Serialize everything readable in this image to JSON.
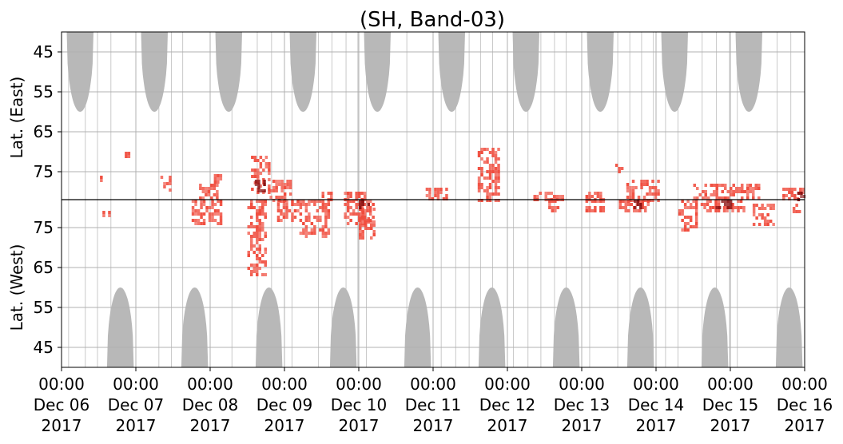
{
  "chart_data": {
    "type": "heatmap",
    "title": "(SH, Band-03)",
    "y_label_top": "Lat. (East)",
    "y_label_bottom": "Lat. (West)",
    "x_ticks": [
      {
        "value": "2017-12-06 00:00",
        "time": "00:00",
        "date": "Dec 06",
        "year": "2017"
      },
      {
        "value": "2017-12-07 00:00",
        "time": "00:00",
        "date": "Dec 07",
        "year": "2017"
      },
      {
        "value": "2017-12-08 00:00",
        "time": "00:00",
        "date": "Dec 08",
        "year": "2017"
      },
      {
        "value": "2017-12-09 00:00",
        "time": "00:00",
        "date": "Dec 09",
        "year": "2017"
      },
      {
        "value": "2017-12-10 00:00",
        "time": "00:00",
        "date": "Dec 10",
        "year": "2017"
      },
      {
        "value": "2017-12-11 00:00",
        "time": "00:00",
        "date": "Dec 11",
        "year": "2017"
      },
      {
        "value": "2017-12-12 00:00",
        "time": "00:00",
        "date": "Dec 12",
        "year": "2017"
      },
      {
        "value": "2017-12-13 00:00",
        "time": "00:00",
        "date": "Dec 13",
        "year": "2017"
      },
      {
        "value": "2017-12-14 00:00",
        "time": "00:00",
        "date": "Dec 14",
        "year": "2017"
      },
      {
        "value": "2017-12-15 00:00",
        "time": "00:00",
        "date": "Dec 15",
        "year": "2017"
      },
      {
        "value": "2017-12-16 00:00",
        "time": "00:00",
        "date": "Dec 16",
        "year": "2017"
      }
    ],
    "y_ticks_east": [
      "45",
      "55",
      "65",
      "75"
    ],
    "y_ticks_west": [
      "75",
      "65",
      "55",
      "45"
    ],
    "east_lat_values": [
      45,
      55,
      65,
      75
    ],
    "west_lat_values": [
      75,
      65,
      55,
      45
    ],
    "lat_range": [
      40,
      82
    ],
    "x_range": [
      "2017-12-06 00:00",
      "2017-12-16 00:00"
    ],
    "grid": true,
    "colors": {
      "echo": "#f04b3c",
      "echo_dark": "#8a1010",
      "daylight": "#b8b8b8",
      "grid": "#b0b0b0"
    },
    "east_daylight_lobes": [
      {
        "center": "2017-12-06 06:00",
        "lowest_lat": 60
      },
      {
        "center": "2017-12-07 06:00",
        "lowest_lat": 60
      },
      {
        "center": "2017-12-08 06:00",
        "lowest_lat": 60
      },
      {
        "center": "2017-12-09 06:00",
        "lowest_lat": 60
      },
      {
        "center": "2017-12-10 06:00",
        "lowest_lat": 60
      },
      {
        "center": "2017-12-11 06:00",
        "lowest_lat": 60
      },
      {
        "center": "2017-12-12 06:00",
        "lowest_lat": 60
      },
      {
        "center": "2017-12-13 06:00",
        "lowest_lat": 60
      },
      {
        "center": "2017-12-14 06:00",
        "lowest_lat": 60
      },
      {
        "center": "2017-12-15 06:00",
        "lowest_lat": 60
      }
    ],
    "west_daylight_lobes": [
      {
        "center": "2017-12-06 19:00",
        "lowest_lat": 60
      },
      {
        "center": "2017-12-07 19:00",
        "lowest_lat": 60
      },
      {
        "center": "2017-12-08 19:00",
        "lowest_lat": 60
      },
      {
        "center": "2017-12-09 19:00",
        "lowest_lat": 60
      },
      {
        "center": "2017-12-10 19:00",
        "lowest_lat": 60
      },
      {
        "center": "2017-12-11 19:00",
        "lowest_lat": 60
      },
      {
        "center": "2017-12-12 19:00",
        "lowest_lat": 60
      },
      {
        "center": "2017-12-13 19:00",
        "lowest_lat": 60
      },
      {
        "center": "2017-12-14 19:00",
        "lowest_lat": 60
      },
      {
        "center": "2017-12-15 19:00",
        "lowest_lat": 60
      }
    ],
    "echo_clusters": [
      {
        "side": "east",
        "t_start": 0.48,
        "t_end": 0.55,
        "lat_min": 76,
        "lat_max": 77
      },
      {
        "side": "east",
        "t_start": 0.85,
        "t_end": 0.9,
        "lat_min": 70,
        "lat_max": 71
      },
      {
        "side": "east",
        "t_start": 1.33,
        "t_end": 1.45,
        "lat_min": 76,
        "lat_max": 80
      },
      {
        "side": "east",
        "t_start": 1.85,
        "t_end": 2.1,
        "lat_min": 78,
        "lat_max": 82
      },
      {
        "side": "east",
        "t_start": 2.05,
        "t_end": 2.13,
        "lat_min": 74,
        "lat_max": 78
      },
      {
        "side": "east",
        "t_start": 2.55,
        "t_end": 2.8,
        "lat_min": 71,
        "lat_max": 80
      },
      {
        "side": "east",
        "t_start": 2.8,
        "t_end": 3.1,
        "lat_min": 77,
        "lat_max": 82
      },
      {
        "side": "east",
        "t_start": 3.5,
        "t_end": 3.65,
        "lat_min": 80,
        "lat_max": 82
      },
      {
        "side": "east",
        "t_start": 3.8,
        "t_end": 4.1,
        "lat_min": 80,
        "lat_max": 82
      },
      {
        "side": "east",
        "t_start": 4.9,
        "t_end": 5.2,
        "lat_min": 79,
        "lat_max": 82
      },
      {
        "side": "east",
        "t_start": 5.6,
        "t_end": 5.9,
        "lat_min": 69,
        "lat_max": 82
      },
      {
        "side": "east",
        "t_start": 6.35,
        "t_end": 6.75,
        "lat_min": 80,
        "lat_max": 82
      },
      {
        "side": "east",
        "t_start": 7.05,
        "t_end": 7.3,
        "lat_min": 80,
        "lat_max": 82
      },
      {
        "side": "east",
        "t_start": 7.45,
        "t_end": 7.55,
        "lat_min": 73,
        "lat_max": 75
      },
      {
        "side": "east",
        "t_start": 7.6,
        "t_end": 8.05,
        "lat_min": 77,
        "lat_max": 82
      },
      {
        "side": "east",
        "t_start": 8.5,
        "t_end": 9.4,
        "lat_min": 78,
        "lat_max": 82
      },
      {
        "side": "east",
        "t_start": 9.7,
        "t_end": 10.0,
        "lat_min": 79,
        "lat_max": 82
      },
      {
        "side": "west",
        "t_start": 0.55,
        "t_end": 0.65,
        "lat_min": 78,
        "lat_max": 80
      },
      {
        "side": "west",
        "t_start": 1.75,
        "t_end": 2.15,
        "lat_min": 76,
        "lat_max": 82
      },
      {
        "side": "west",
        "t_start": 2.5,
        "t_end": 2.75,
        "lat_min": 63,
        "lat_max": 82
      },
      {
        "side": "west",
        "t_start": 2.9,
        "t_end": 3.2,
        "lat_min": 77,
        "lat_max": 82
      },
      {
        "side": "west",
        "t_start": 3.2,
        "t_end": 3.6,
        "lat_min": 73,
        "lat_max": 82
      },
      {
        "side": "west",
        "t_start": 3.8,
        "t_end": 4.2,
        "lat_min": 76,
        "lat_max": 82
      },
      {
        "side": "west",
        "t_start": 4.0,
        "t_end": 4.2,
        "lat_min": 72,
        "lat_max": 80
      },
      {
        "side": "west",
        "t_start": 6.55,
        "t_end": 6.7,
        "lat_min": 79,
        "lat_max": 82
      },
      {
        "side": "west",
        "t_start": 7.05,
        "t_end": 7.3,
        "lat_min": 79,
        "lat_max": 82
      },
      {
        "side": "west",
        "t_start": 7.5,
        "t_end": 7.9,
        "lat_min": 79,
        "lat_max": 82
      },
      {
        "side": "west",
        "t_start": 8.3,
        "t_end": 8.55,
        "lat_min": 74,
        "lat_max": 82
      },
      {
        "side": "west",
        "t_start": 8.6,
        "t_end": 9.2,
        "lat_min": 79,
        "lat_max": 82
      },
      {
        "side": "west",
        "t_start": 9.3,
        "t_end": 9.6,
        "lat_min": 76,
        "lat_max": 81
      },
      {
        "side": "west",
        "t_start": 9.8,
        "t_end": 9.95,
        "lat_min": 79,
        "lat_max": 81
      }
    ],
    "dark_cores": [
      {
        "side": "east",
        "t_start": 2.6,
        "t_end": 2.72,
        "lat_min": 77,
        "lat_max": 80
      },
      {
        "side": "west",
        "t_start": 4.0,
        "t_end": 4.12,
        "lat_min": 80,
        "lat_max": 82
      },
      {
        "side": "west",
        "t_start": 7.7,
        "t_end": 7.8,
        "lat_min": 80,
        "lat_max": 82
      },
      {
        "side": "west",
        "t_start": 8.8,
        "t_end": 9.0,
        "lat_min": 80,
        "lat_max": 82
      },
      {
        "side": "east",
        "t_start": 9.9,
        "t_end": 10.0,
        "lat_min": 80,
        "lat_max": 82
      }
    ]
  }
}
